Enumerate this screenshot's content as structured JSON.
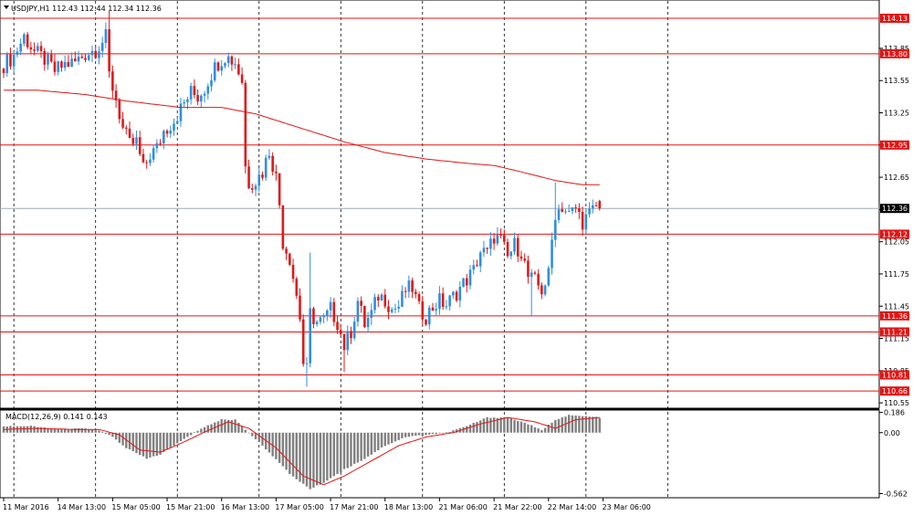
{
  "header": {
    "symbol_line": "USDJPY,H1  112.43 112.44 112.34 112.36"
  },
  "colors": {
    "bull": "#2f8fe0",
    "bear": "#e0191a",
    "level": "#e31414",
    "ma": "#e31414",
    "macd_hist": "#808080",
    "macd_signal": "#e31414",
    "current_price_line": "#a0a8b0",
    "current_price_tag": "#000000"
  },
  "chart_data": [
    {
      "type": "candlestick",
      "title": "USDJPY,H1",
      "ohlc_last": {
        "open": 112.43,
        "high": 112.44,
        "low": 112.34,
        "close": 112.36
      },
      "ylim": [
        110.5,
        114.3
      ],
      "y_ticks": [
        "113.85",
        "113.55",
        "113.25",
        "112.95",
        "112.65",
        "112.35",
        "112.05",
        "111.75",
        "111.45",
        "111.15",
        "110.85",
        "110.55"
      ],
      "y_tick_values": [
        113.85,
        113.55,
        113.25,
        112.95,
        112.65,
        112.35,
        112.05,
        111.75,
        111.45,
        111.15,
        110.85,
        110.55
      ],
      "x_ticks": [
        "11 Mar 2016",
        "14 Mar 13:00",
        "15 Mar 05:00",
        "15 Mar 21:00",
        "16 Mar 13:00",
        "17 Mar 05:00",
        "17 Mar 21:00",
        "18 Mar 13:00",
        "21 Mar 06:00",
        "21 Mar 22:00",
        "22 Mar 14:00",
        "23 Mar 06:00"
      ],
      "x_tick_bar_index": [
        0,
        16,
        32,
        48,
        64,
        80,
        96,
        112,
        128,
        144,
        160,
        176
      ],
      "date_separators_bar_index": [
        3,
        27,
        51,
        75,
        99,
        123,
        147,
        171,
        195
      ],
      "horizontal_levels": [
        {
          "value": 114.13,
          "label": "114.13"
        },
        {
          "value": 113.8,
          "label": "113.80"
        },
        {
          "value": 112.95,
          "label": "112.95"
        },
        {
          "value": 112.12,
          "label": "112.12"
        },
        {
          "value": 111.36,
          "label": "111.36"
        },
        {
          "value": 111.21,
          "label": "111.21"
        },
        {
          "value": 110.81,
          "label": "110.81"
        },
        {
          "value": 110.66,
          "label": "110.66"
        }
      ],
      "current_price": {
        "value": 112.36,
        "label": "112.36"
      },
      "close_path": [
        [
          0,
          113.7
        ],
        [
          3,
          113.78
        ],
        [
          6,
          113.96
        ],
        [
          9,
          113.82
        ],
        [
          12,
          113.75
        ],
        [
          15,
          113.64
        ],
        [
          18,
          113.7
        ],
        [
          21,
          113.72
        ],
        [
          24,
          113.8
        ],
        [
          27,
          113.84
        ],
        [
          30,
          113.95
        ],
        [
          31,
          113.6
        ],
        [
          33,
          113.38
        ],
        [
          35,
          113.1
        ],
        [
          37,
          112.95
        ],
        [
          39,
          112.98
        ],
        [
          41,
          112.72
        ],
        [
          43,
          112.86
        ],
        [
          45,
          112.92
        ],
        [
          47,
          113.08
        ],
        [
          50,
          113.18
        ],
        [
          53,
          113.34
        ],
        [
          55,
          113.44
        ],
        [
          57,
          113.4
        ],
        [
          59,
          113.48
        ],
        [
          61,
          113.62
        ],
        [
          63,
          113.72
        ],
        [
          65,
          113.78
        ],
        [
          68,
          113.72
        ],
        [
          70,
          113.55
        ],
        [
          71,
          112.75
        ],
        [
          72,
          112.6
        ],
        [
          74,
          112.62
        ],
        [
          76,
          112.7
        ],
        [
          78,
          112.9
        ],
        [
          80,
          112.65
        ],
        [
          81,
          112.4
        ],
        [
          82,
          112.05
        ],
        [
          84,
          111.9
        ],
        [
          86,
          111.55
        ],
        [
          87,
          111.35
        ],
        [
          88,
          110.92
        ],
        [
          89,
          110.85
        ],
        [
          90,
          111.38
        ],
        [
          92,
          111.3
        ],
        [
          94,
          111.32
        ],
        [
          96,
          111.42
        ],
        [
          98,
          111.3
        ],
        [
          100,
          111.08
        ],
        [
          102,
          111.22
        ],
        [
          104,
          111.5
        ],
        [
          106,
          111.28
        ],
        [
          108,
          111.38
        ],
        [
          110,
          111.55
        ],
        [
          112,
          111.52
        ],
        [
          114,
          111.42
        ],
        [
          116,
          111.45
        ],
        [
          118,
          111.6
        ],
        [
          120,
          111.62
        ],
        [
          122,
          111.42
        ],
        [
          124,
          111.36
        ],
        [
          126,
          111.44
        ],
        [
          128,
          111.5
        ],
        [
          130,
          111.46
        ],
        [
          132,
          111.54
        ],
        [
          134,
          111.62
        ],
        [
          136,
          111.7
        ],
        [
          138,
          111.78
        ],
        [
          140,
          111.96
        ],
        [
          142,
          111.94
        ],
        [
          144,
          112.1
        ],
        [
          146,
          112.06
        ],
        [
          148,
          111.9
        ],
        [
          150,
          112.02
        ],
        [
          152,
          111.96
        ],
        [
          154,
          111.72
        ],
        [
          156,
          111.68
        ],
        [
          158,
          111.6
        ],
        [
          160,
          111.74
        ],
        [
          161,
          112.06
        ],
        [
          162,
          112.32
        ],
        [
          164,
          112.38
        ],
        [
          166,
          112.3
        ],
        [
          168,
          112.36
        ],
        [
          170,
          112.24
        ],
        [
          172,
          112.3
        ],
        [
          174,
          112.38
        ],
        [
          175,
          112.36
        ]
      ],
      "spikes": [
        {
          "bar": 31,
          "high": 114.2
        },
        {
          "bar": 89,
          "low": 110.7
        },
        {
          "bar": 90,
          "high": 111.95
        },
        {
          "bar": 100,
          "low": 110.84
        },
        {
          "bar": 155,
          "low": 111.36
        },
        {
          "bar": 162,
          "high": 112.6
        }
      ],
      "moving_average": [
        [
          0,
          113.46
        ],
        [
          10,
          113.46
        ],
        [
          24,
          113.42
        ],
        [
          36,
          113.36
        ],
        [
          52,
          113.3
        ],
        [
          64,
          113.3
        ],
        [
          74,
          113.24
        ],
        [
          88,
          113.1
        ],
        [
          100,
          112.98
        ],
        [
          112,
          112.88
        ],
        [
          124,
          112.82
        ],
        [
          136,
          112.78
        ],
        [
          144,
          112.76
        ],
        [
          152,
          112.7
        ],
        [
          162,
          112.62
        ],
        [
          170,
          112.58
        ],
        [
          175,
          112.58
        ]
      ]
    },
    {
      "type": "bar",
      "title": "MACD(12,26,9) 0.141 0.143",
      "ylim": [
        -0.6,
        0.2
      ],
      "y_ticks": [
        "0.186",
        "0.00",
        "-0.562"
      ],
      "y_tick_values": [
        0.186,
        0.0,
        -0.562
      ],
      "histogram_path": [
        [
          0,
          0.06
        ],
        [
          8,
          0.06
        ],
        [
          16,
          0.03
        ],
        [
          24,
          0.04
        ],
        [
          28,
          0.02
        ],
        [
          32,
          -0.04
        ],
        [
          36,
          -0.14
        ],
        [
          42,
          -0.24
        ],
        [
          46,
          -0.2
        ],
        [
          52,
          -0.08
        ],
        [
          58,
          0.04
        ],
        [
          64,
          0.12
        ],
        [
          68,
          0.12
        ],
        [
          72,
          0.0
        ],
        [
          78,
          -0.18
        ],
        [
          84,
          -0.38
        ],
        [
          90,
          -0.52
        ],
        [
          94,
          -0.46
        ],
        [
          100,
          -0.34
        ],
        [
          106,
          -0.24
        ],
        [
          112,
          -0.12
        ],
        [
          118,
          -0.04
        ],
        [
          124,
          -0.02
        ],
        [
          130,
          0.0
        ],
        [
          136,
          0.06
        ],
        [
          142,
          0.14
        ],
        [
          148,
          0.14
        ],
        [
          154,
          0.08
        ],
        [
          158,
          0.02
        ],
        [
          162,
          0.12
        ],
        [
          166,
          0.16
        ],
        [
          171,
          0.15
        ],
        [
          175,
          0.14
        ]
      ],
      "signal_path": [
        [
          0,
          0.03
        ],
        [
          10,
          0.04
        ],
        [
          20,
          0.03
        ],
        [
          28,
          0.03
        ],
        [
          34,
          -0.02
        ],
        [
          40,
          -0.16
        ],
        [
          46,
          -0.18
        ],
        [
          52,
          -0.1
        ],
        [
          60,
          0.02
        ],
        [
          66,
          0.1
        ],
        [
          72,
          0.04
        ],
        [
          80,
          -0.14
        ],
        [
          88,
          -0.4
        ],
        [
          94,
          -0.48
        ],
        [
          100,
          -0.4
        ],
        [
          108,
          -0.26
        ],
        [
          116,
          -0.12
        ],
        [
          124,
          -0.04
        ],
        [
          132,
          0.0
        ],
        [
          140,
          0.08
        ],
        [
          148,
          0.14
        ],
        [
          156,
          0.1
        ],
        [
          162,
          0.04
        ],
        [
          168,
          0.12
        ],
        [
          175,
          0.14
        ]
      ]
    }
  ]
}
